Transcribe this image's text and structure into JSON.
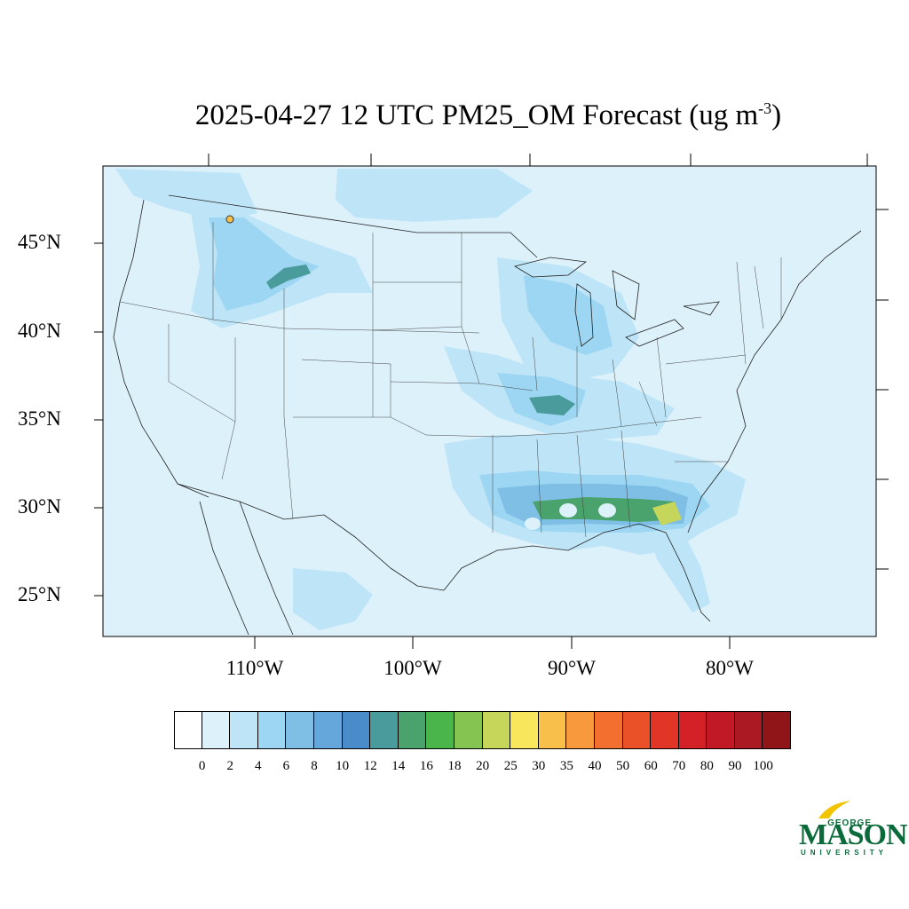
{
  "title": {
    "main": "2025-04-27 12 UTC PM25_OM Forecast (ug m",
    "sup": "-3",
    "end": ")"
  },
  "lat_labels": [
    "45°N",
    "40°N",
    "35°N",
    "30°N",
    "25°N"
  ],
  "lon_labels": [
    "110°W",
    "100°W",
    "90°W",
    "80°W"
  ],
  "colorbar": {
    "colors": [
      "#ffffff",
      "#ddf1fb",
      "#bde5f7",
      "#9dd6f2",
      "#7fbfe6",
      "#66a7db",
      "#4a8cc9",
      "#4a9b9b",
      "#4aa36c",
      "#4ab54a",
      "#85c450",
      "#c5d65a",
      "#f8e75c",
      "#f8c04a",
      "#f7993c",
      "#f36f30",
      "#eb5128",
      "#e03527",
      "#d42027",
      "#c11a26",
      "#ab1a22",
      "#8f1519"
    ],
    "labels": [
      "0",
      "2",
      "4",
      "6",
      "8",
      "10",
      "12",
      "14",
      "16",
      "18",
      "20",
      "25",
      "30",
      "35",
      "40",
      "50",
      "60",
      "70",
      "80",
      "90",
      "100"
    ]
  },
  "logo": {
    "george": "GEORGE",
    "mason": "MASON",
    "university": "UNIVERSITY",
    "colors": {
      "green": "#0b6a3a",
      "gold": "#f2c400"
    }
  },
  "map_colors": {
    "background": "#ddf1fb",
    "light": "#bde5f7",
    "medium": "#9dd6f2",
    "blue": "#7fbfe6",
    "teal": "#4a9b9b",
    "green": "#4aa36c",
    "yellowgreen": "#c5d65a"
  }
}
